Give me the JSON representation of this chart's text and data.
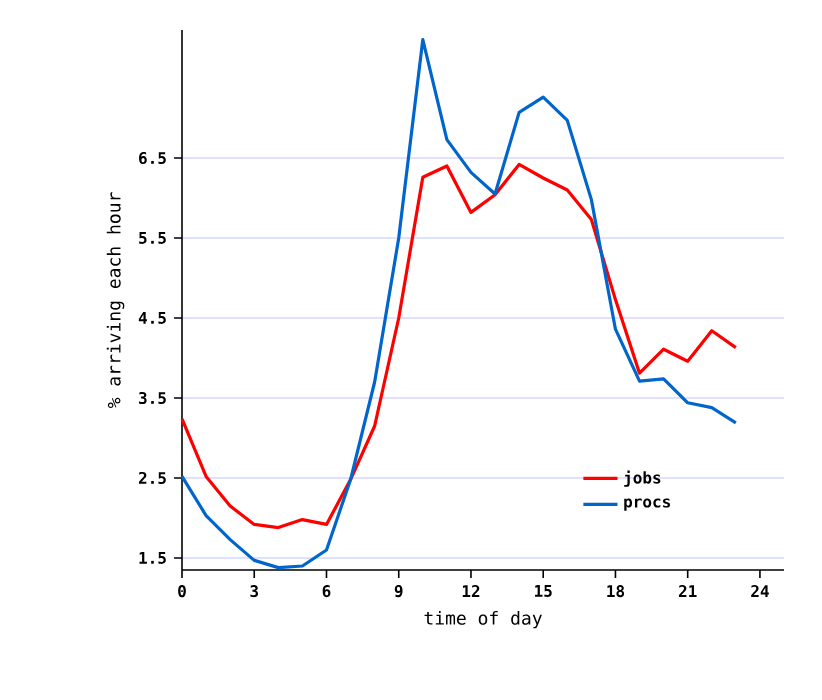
{
  "chart_data": {
    "type": "line",
    "xlabel": "time of day",
    "ylabel": "% arriving each hour",
    "x": [
      0,
      1,
      2,
      3,
      4,
      5,
      6,
      7,
      8,
      9,
      10,
      11,
      12,
      13,
      14,
      15,
      16,
      17,
      18,
      19,
      20,
      21,
      22,
      23
    ],
    "series": [
      {
        "name": "jobs",
        "color": "#ff0000",
        "values": [
          3.24,
          2.52,
          2.15,
          1.92,
          1.88,
          1.98,
          1.92,
          2.48,
          3.15,
          4.5,
          6.26,
          6.4,
          5.82,
          6.04,
          6.42,
          6.25,
          6.1,
          5.73,
          4.73,
          3.81,
          4.11,
          3.96,
          4.34,
          4.13
        ]
      },
      {
        "name": "procs",
        "color": "#0066cc",
        "values": [
          2.52,
          2.03,
          1.73,
          1.47,
          1.38,
          1.4,
          1.6,
          2.48,
          3.7,
          5.5,
          7.98,
          6.73,
          6.32,
          6.05,
          7.07,
          7.26,
          6.97,
          5.98,
          4.36,
          3.71,
          3.74,
          3.44,
          3.38,
          3.19
        ]
      }
    ],
    "xlim": [
      0,
      25
    ],
    "xticks": [
      0,
      3,
      6,
      9,
      12,
      15,
      18,
      21,
      24
    ],
    "ylim": [
      1.35,
      8.1
    ],
    "yticks": [
      1.5,
      2.5,
      3.5,
      4.5,
      5.5,
      6.5
    ],
    "grid": "y",
    "legend": "bottom right",
    "line_style": "solid",
    "marker": "none"
  }
}
